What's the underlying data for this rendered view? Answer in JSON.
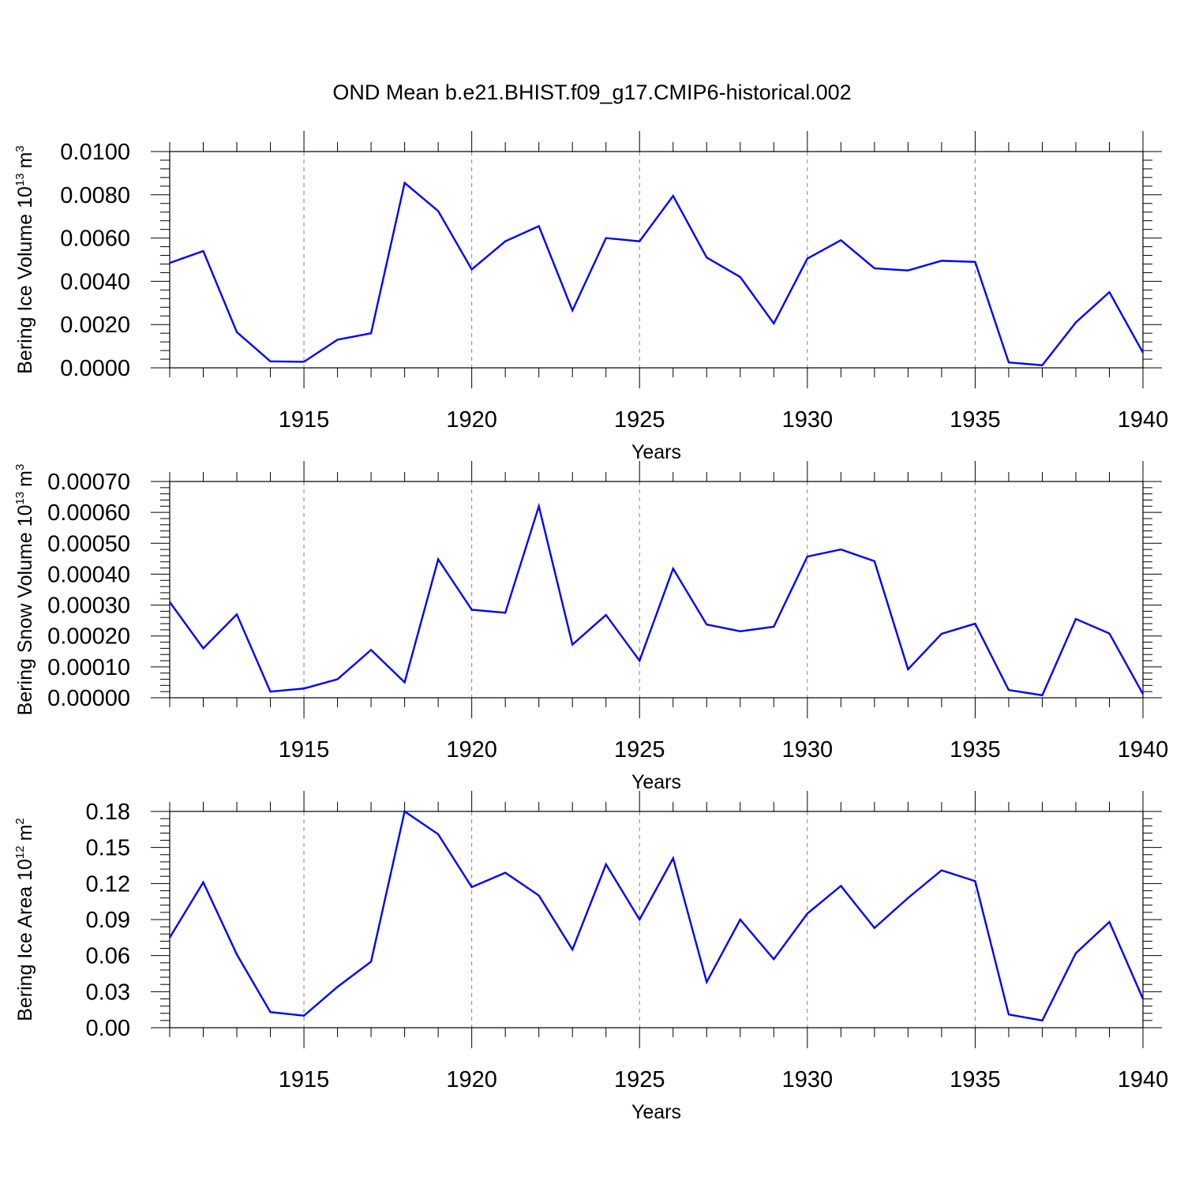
{
  "title": "OND Mean b.e21.BHIST.f09_g17.CMIP6-historical.002",
  "colors": {
    "line": "#0000ff",
    "axis": "#000000",
    "grid": "#808080",
    "background": "#ffffff"
  },
  "chart_data": [
    {
      "type": "line",
      "ylabel_main": "Bering Ice Volume 10",
      "ylabel_exp": "13",
      "ylabel_unit": "m",
      "ylabel_unit_exp": "3",
      "xlabel": "Years",
      "xlim": [
        1911,
        1940
      ],
      "ylim": [
        0,
        0.01
      ],
      "yticks": [
        0,
        0.002,
        0.004,
        0.006,
        0.008,
        0.01
      ],
      "ytick_labels": [
        "0.0000",
        "0.0020",
        "0.0040",
        "0.0060",
        "0.0080",
        "0.0100"
      ],
      "xticks": [
        1915,
        1920,
        1925,
        1930,
        1935,
        1940
      ],
      "xtick_labels": [
        "1915",
        "1920",
        "1925",
        "1930",
        "1935",
        "1940"
      ],
      "grid": "vertical dashed at major x ticks",
      "x": [
        1911,
        1912,
        1913,
        1914,
        1915,
        1916,
        1917,
        1918,
        1919,
        1920,
        1921,
        1922,
        1923,
        1924,
        1925,
        1926,
        1927,
        1928,
        1929,
        1930,
        1931,
        1932,
        1933,
        1934,
        1935,
        1936,
        1937,
        1938,
        1939,
        1940
      ],
      "values": [
        0.00485,
        0.0054,
        0.00165,
        0.0003,
        0.00028,
        0.0013,
        0.0016,
        0.00855,
        0.00725,
        0.00455,
        0.00585,
        0.00655,
        0.00265,
        0.006,
        0.00585,
        0.00795,
        0.0051,
        0.0042,
        0.00205,
        0.00505,
        0.0059,
        0.0046,
        0.0045,
        0.00495,
        0.0049,
        0.00025,
        0.00012,
        0.0021,
        0.0035,
        0.0007
      ]
    },
    {
      "type": "line",
      "ylabel_main": "Bering Snow Volume 10",
      "ylabel_exp": "13",
      "ylabel_unit": "m",
      "ylabel_unit_exp": "3",
      "xlabel": "Years",
      "xlim": [
        1911,
        1940
      ],
      "ylim": [
        0,
        0.0007
      ],
      "yticks": [
        0,
        0.0001,
        0.0002,
        0.0003,
        0.0004,
        0.0005,
        0.0006,
        0.0007
      ],
      "ytick_labels": [
        "0.00000",
        "0.00010",
        "0.00020",
        "0.00030",
        "0.00040",
        "0.00050",
        "0.00060",
        "0.00070"
      ],
      "xticks": [
        1915,
        1920,
        1925,
        1930,
        1935,
        1940
      ],
      "xtick_labels": [
        "1915",
        "1920",
        "1925",
        "1930",
        "1935",
        "1940"
      ],
      "grid": "vertical dashed at major x ticks",
      "x": [
        1911,
        1912,
        1913,
        1914,
        1915,
        1916,
        1917,
        1918,
        1919,
        1920,
        1921,
        1922,
        1923,
        1924,
        1925,
        1926,
        1927,
        1928,
        1929,
        1930,
        1931,
        1932,
        1933,
        1934,
        1935,
        1936,
        1937,
        1938,
        1939,
        1940
      ],
      "values": [
        0.00031,
        0.00016,
        0.00027,
        2e-05,
        3e-05,
        6e-05,
        0.000155,
        5e-05,
        0.000448,
        0.000285,
        0.000275,
        0.00062,
        0.000172,
        0.000268,
        0.00012,
        0.000418,
        0.000237,
        0.000215,
        0.00023,
        0.000457,
        0.00048,
        0.000442,
        9.2e-05,
        0.000207,
        0.00024,
        2.5e-05,
        8e-06,
        0.000255,
        0.000208,
        1.2e-05
      ]
    },
    {
      "type": "line",
      "ylabel_main": "Bering Ice Area 10",
      "ylabel_exp": "12",
      "ylabel_unit": "m",
      "ylabel_unit_exp": "2",
      "xlabel": "Years",
      "xlim": [
        1911,
        1940
      ],
      "ylim": [
        0,
        0.18
      ],
      "yticks": [
        0,
        0.03,
        0.06,
        0.09,
        0.12,
        0.15,
        0.18
      ],
      "ytick_labels": [
        "0.00",
        "0.03",
        "0.06",
        "0.09",
        "0.12",
        "0.15",
        "0.18"
      ],
      "xticks": [
        1915,
        1920,
        1925,
        1930,
        1935,
        1940
      ],
      "xtick_labels": [
        "1915",
        "1920",
        "1925",
        "1930",
        "1935",
        "1940"
      ],
      "grid": "vertical dashed at major x ticks",
      "x": [
        1911,
        1912,
        1913,
        1914,
        1915,
        1916,
        1917,
        1918,
        1919,
        1920,
        1921,
        1922,
        1923,
        1924,
        1925,
        1926,
        1927,
        1928,
        1929,
        1930,
        1931,
        1932,
        1933,
        1934,
        1935,
        1936,
        1937,
        1938,
        1939,
        1940
      ],
      "values": [
        0.075,
        0.121,
        0.061,
        0.013,
        0.01,
        0.034,
        0.055,
        0.18,
        0.161,
        0.117,
        0.129,
        0.11,
        0.065,
        0.136,
        0.09,
        0.141,
        0.038,
        0.09,
        0.057,
        0.095,
        0.118,
        0.083,
        0.108,
        0.131,
        0.122,
        0.011,
        0.006,
        0.062,
        0.088,
        0.024
      ]
    }
  ]
}
